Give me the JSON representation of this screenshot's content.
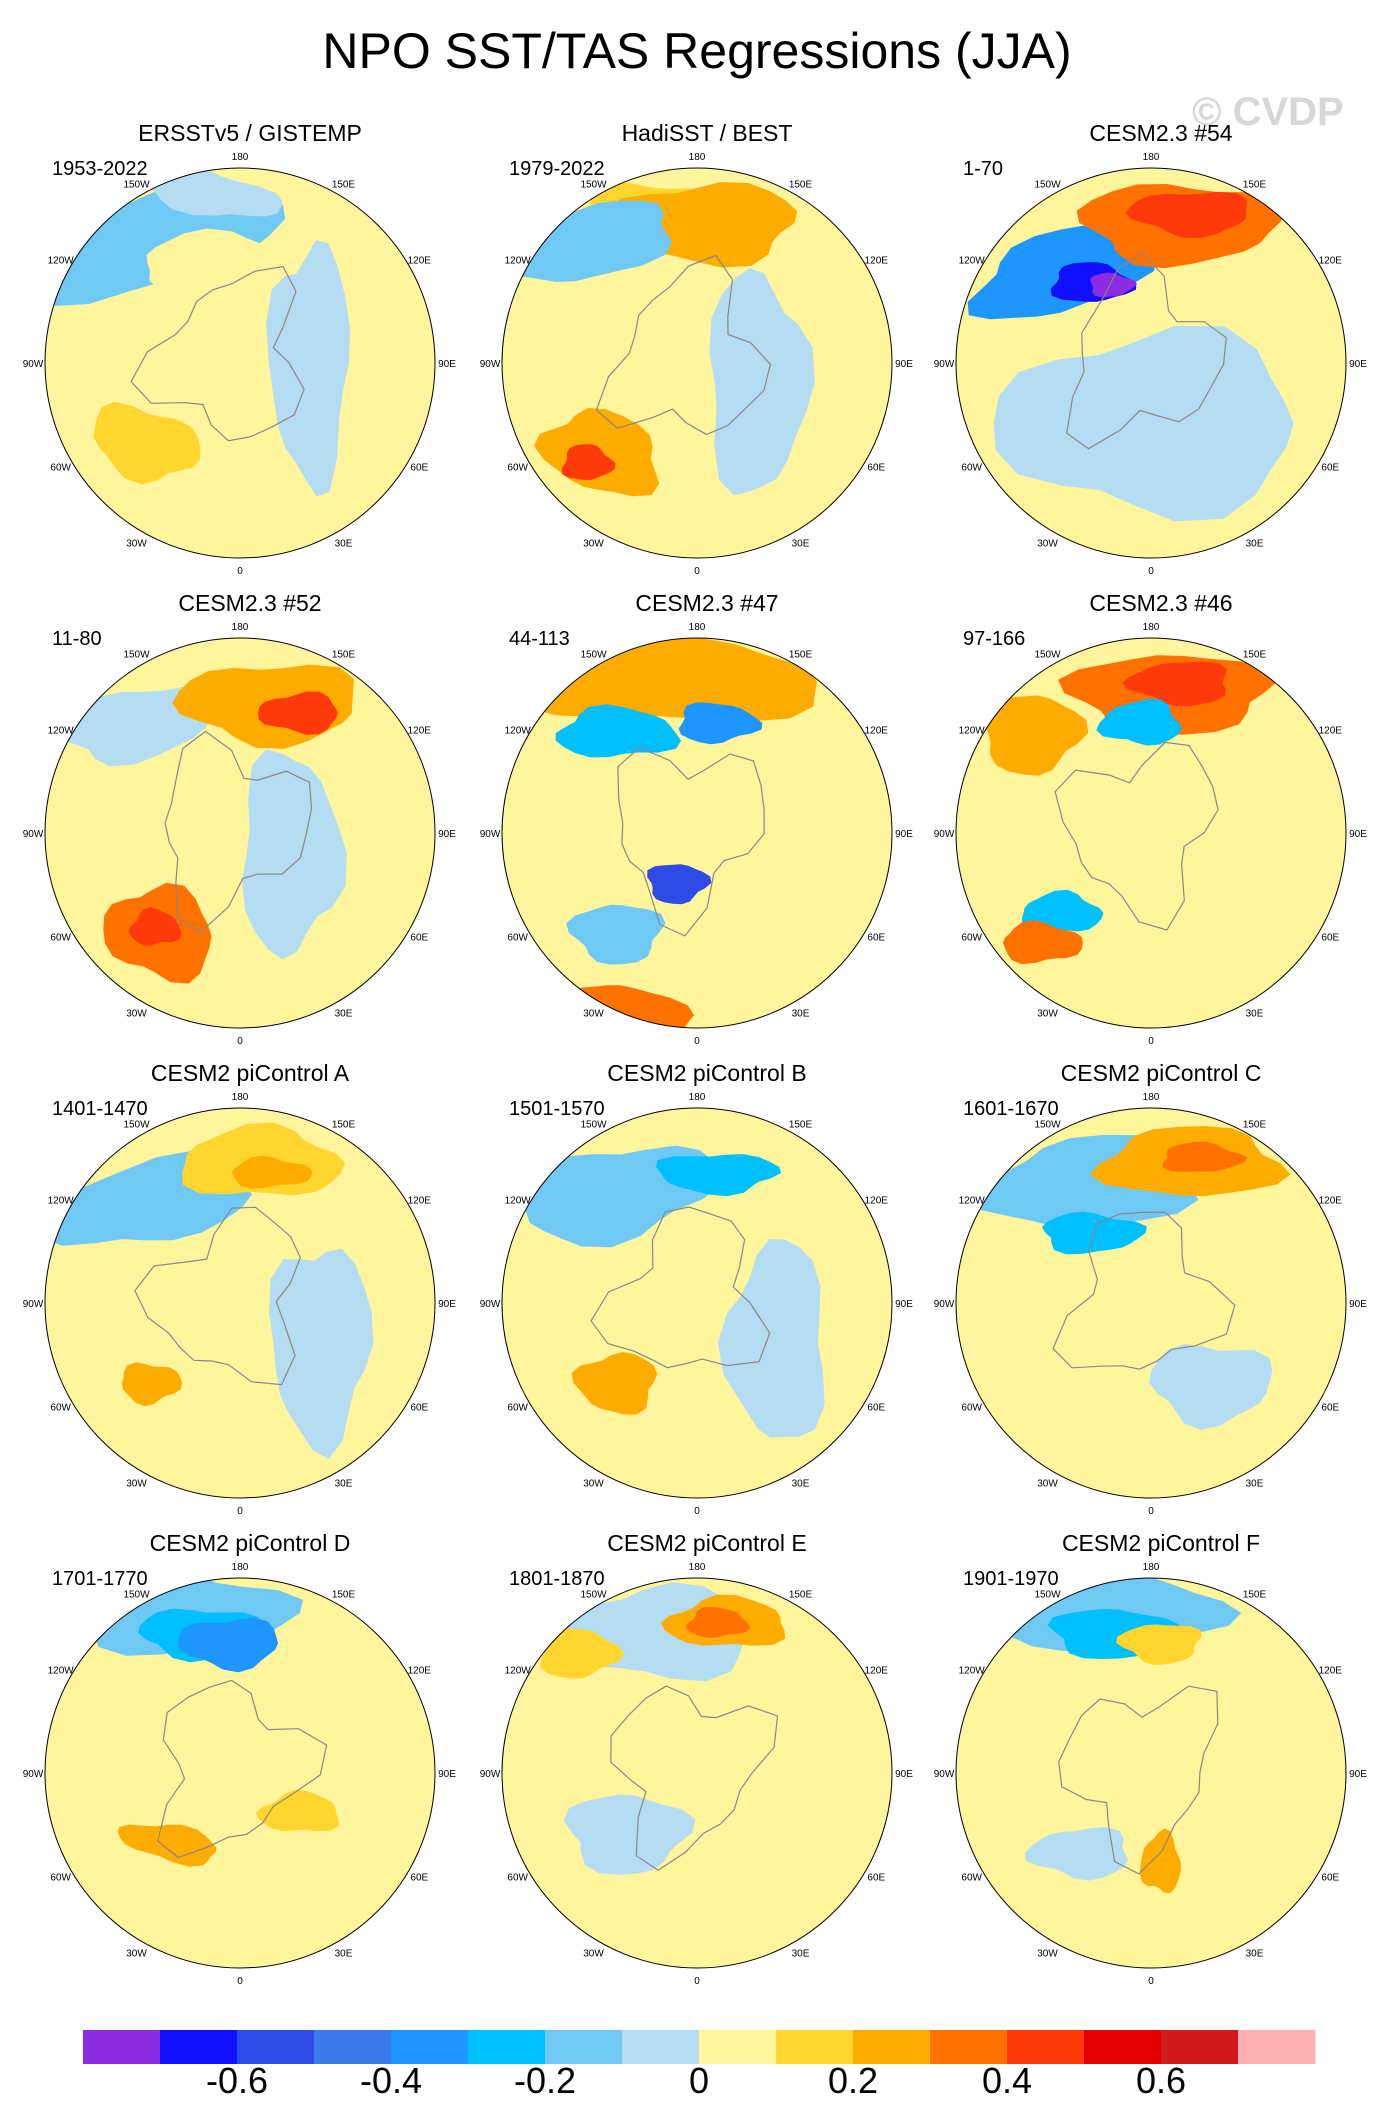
{
  "title": "NPO SST/TAS Regressions (JJA)",
  "watermark": "© CVDP",
  "lon_labels": [
    "180",
    "150E",
    "120E",
    "90E",
    "60E",
    "30E",
    "0",
    "30W",
    "60W",
    "90W",
    "120W",
    "150W"
  ],
  "panels": [
    {
      "title": "ERSSTv5 / GISTEMP",
      "years": "1953-2022"
    },
    {
      "title": "HadiSST / BEST",
      "years": "1979-2022"
    },
    {
      "title": "CESM2.3 #54",
      "years": "1-70"
    },
    {
      "title": "CESM2.3 #52",
      "years": "11-80"
    },
    {
      "title": "CESM2.3 #47",
      "years": "44-113"
    },
    {
      "title": "CESM2.3 #46",
      "years": "97-166"
    },
    {
      "title": "CESM2 piControl A",
      "years": "1401-1470"
    },
    {
      "title": "CESM2 piControl B",
      "years": "1501-1570"
    },
    {
      "title": "CESM2 piControl C",
      "years": "1601-1670"
    },
    {
      "title": "CESM2 piControl D",
      "years": "1701-1770"
    },
    {
      "title": "CESM2 piControl E",
      "years": "1801-1870"
    },
    {
      "title": "CESM2 piControl F",
      "years": "1901-1970"
    }
  ],
  "colorbar": {
    "colors": [
      "#8b2be2",
      "#1010ff",
      "#2e4be6",
      "#3a79e8",
      "#1e96ff",
      "#00bfff",
      "#70c8f4",
      "#b4dcf2",
      "#fff59d",
      "#ffd52e",
      "#ffac00",
      "#ff7200",
      "#ff3a0a",
      "#e60000",
      "#d11b1b",
      "#ffb0b0"
    ],
    "tick_labels": [
      "-0.6",
      "-0.4",
      "-0.2",
      "0",
      "0.2",
      "0.4",
      "0.6"
    ],
    "tick_values": [
      -0.6,
      -0.4,
      -0.2,
      0,
      0.2,
      0.4,
      0.6
    ]
  }
}
